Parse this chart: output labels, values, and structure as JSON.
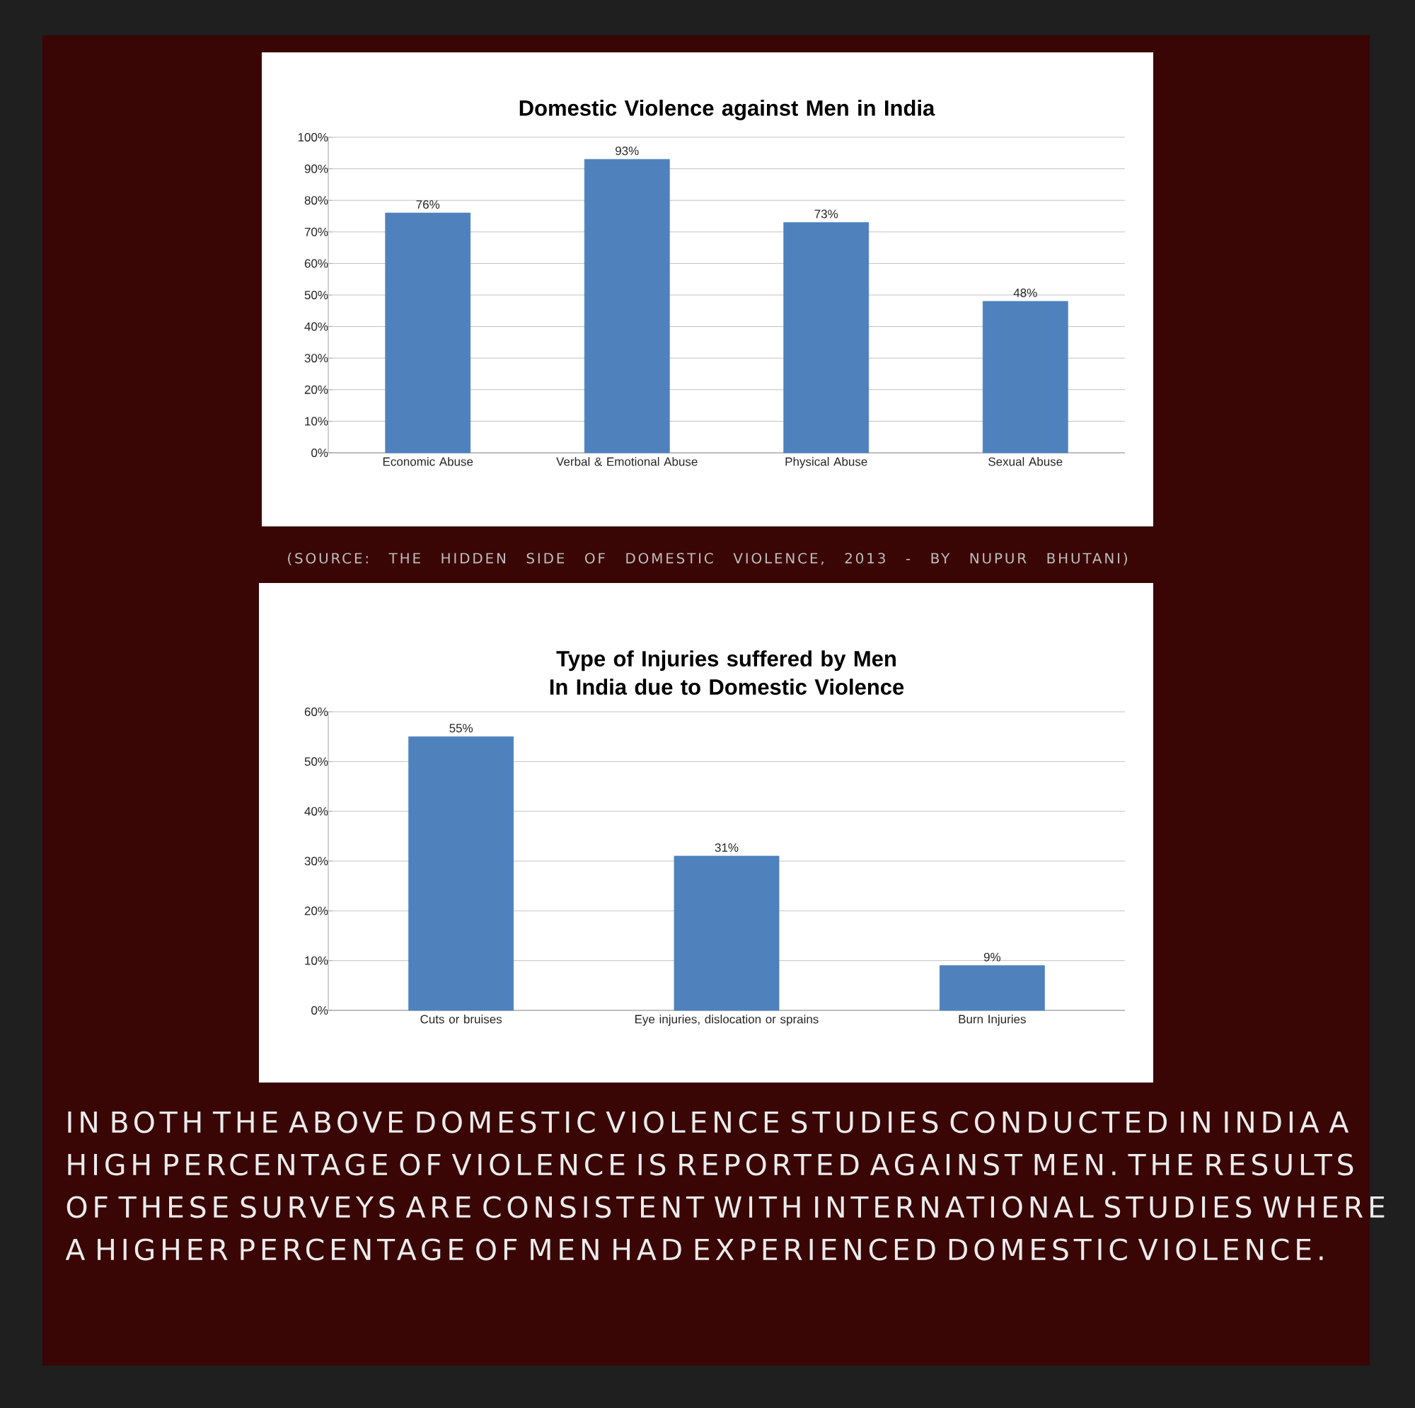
{
  "chart_data": [
    {
      "type": "bar",
      "title": "Domestic Violence against Men in India",
      "categories": [
        "Economic Abuse",
        "Verbal & Emotional Abuse",
        "Physical Abuse",
        "Sexual Abuse"
      ],
      "values": [
        76,
        93,
        73,
        48
      ],
      "value_labels": [
        "76%",
        "93%",
        "73%",
        "48%"
      ],
      "color": "#4f81bd",
      "ylim": [
        0,
        100
      ],
      "yticks": [
        {
          "value": 0,
          "label": "0%"
        },
        {
          "value": 10,
          "label": "10%"
        },
        {
          "value": 20,
          "label": "20%"
        },
        {
          "value": 30,
          "label": "30%"
        },
        {
          "value": 40,
          "label": "40%"
        },
        {
          "value": 50,
          "label": "50%"
        },
        {
          "value": 60,
          "label": "60%"
        },
        {
          "value": 70,
          "label": "70%"
        },
        {
          "value": 80,
          "label": "80%"
        },
        {
          "value": 90,
          "label": "90%"
        },
        {
          "value": 100,
          "label": "100%"
        }
      ],
      "grid": "y",
      "annotations": [
        "(SOURCE: THE HIDDEN SIDE OF DOMESTIC VIOLENCE, 2013 - BY NUPUR BHUTANI)"
      ]
    },
    {
      "type": "bar",
      "title": "Type of Injuries suffered by Men In India due to Domestic Violence",
      "categories": [
        "Cuts or bruises",
        "Eye injuries, dislocation or sprains",
        "Burn Injuries"
      ],
      "values": [
        55,
        31,
        9
      ],
      "value_labels": [
        "55%",
        "31%",
        "9%"
      ],
      "color": "#4f81bd",
      "ylim": [
        0,
        60
      ],
      "yticks": [
        {
          "value": 0,
          "label": "0%"
        },
        {
          "value": 10,
          "label": "10%"
        },
        {
          "value": 20,
          "label": "20%"
        },
        {
          "value": 30,
          "label": "30%"
        },
        {
          "value": 40,
          "label": "40%"
        },
        {
          "value": 50,
          "label": "50%"
        },
        {
          "value": 60,
          "label": "60%"
        }
      ],
      "grid": "y",
      "annotations": [
        "IN BOTH THE ABOVE DOMESTIC VIOLENCE STUDIES CONDUCTED IN INDIA A HIGH PERCENTAGE OF VIOLENCE IS REPORTED AGAINST MEN. THE RESULTS OF THESE SURVEYS ARE CONSISTENT WITH INTERNATIONAL STUDIES WHERE A HIGHER PERCENTAGE OF MEN HAD EXPERIENCED DOMESTIC VIOLENCE."
      ]
    }
  ]
}
